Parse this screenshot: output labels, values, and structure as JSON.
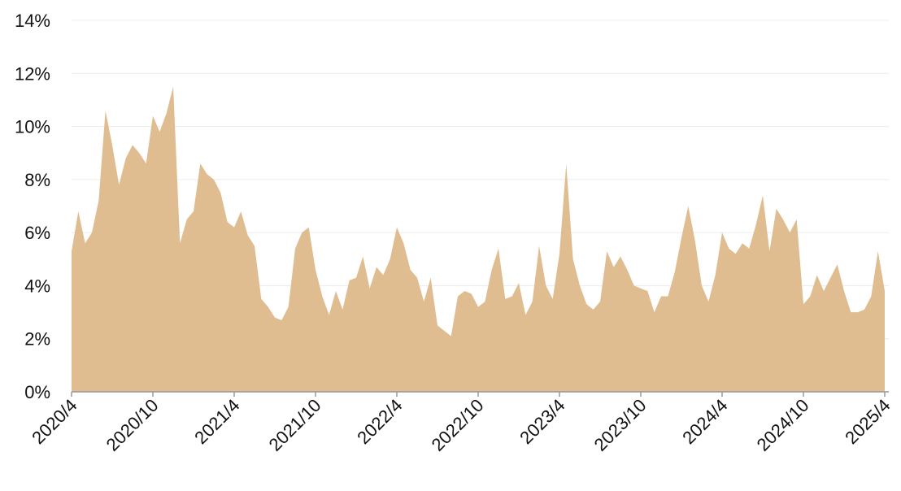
{
  "chart_data": {
    "type": "area",
    "categories": [
      "2020/4",
      null,
      null,
      null,
      null,
      null,
      null,
      null,
      null,
      null,
      null,
      null,
      "2020/10",
      null,
      null,
      null,
      null,
      null,
      null,
      null,
      null,
      null,
      null,
      null,
      "2021/4",
      null,
      null,
      null,
      null,
      null,
      null,
      null,
      null,
      null,
      null,
      null,
      "2021/10",
      null,
      null,
      null,
      null,
      null,
      null,
      null,
      null,
      null,
      null,
      null,
      "2022/4",
      null,
      null,
      null,
      null,
      null,
      null,
      null,
      null,
      null,
      null,
      null,
      "2022/10",
      null,
      null,
      null,
      null,
      null,
      null,
      null,
      null,
      null,
      null,
      null,
      "2023/4",
      null,
      null,
      null,
      null,
      null,
      null,
      null,
      null,
      null,
      null,
      null,
      "2023/10",
      null,
      null,
      null,
      null,
      null,
      null,
      null,
      null,
      null,
      null,
      null,
      "2024/4",
      null,
      null,
      null,
      null,
      null,
      null,
      null,
      null,
      null,
      null,
      null,
      "2024/10",
      null,
      null,
      null,
      null,
      null,
      null,
      null,
      null,
      null,
      null,
      null,
      "2025/4"
    ],
    "values": [
      5.3,
      6.8,
      5.6,
      6.0,
      7.2,
      10.6,
      9.3,
      7.8,
      8.8,
      9.3,
      9.0,
      8.6,
      10.4,
      9.8,
      10.5,
      11.5,
      5.6,
      6.5,
      6.8,
      8.6,
      8.2,
      8.0,
      7.5,
      6.4,
      6.2,
      6.8,
      5.9,
      5.5,
      3.5,
      3.2,
      2.8,
      2.7,
      3.2,
      5.4,
      6.0,
      6.2,
      4.6,
      3.6,
      2.9,
      3.8,
      3.1,
      4.2,
      4.3,
      5.1,
      3.9,
      4.7,
      4.4,
      5.0,
      6.2,
      5.6,
      4.6,
      4.3,
      3.4,
      4.3,
      2.5,
      2.3,
      2.1,
      3.6,
      3.8,
      3.7,
      3.2,
      3.4,
      4.6,
      5.4,
      3.5,
      3.6,
      4.1,
      2.9,
      3.4,
      5.5,
      4.0,
      3.5,
      5.2,
      8.6,
      5.0,
      4.0,
      3.3,
      3.1,
      3.4,
      5.3,
      4.7,
      5.1,
      4.6,
      4.0,
      3.9,
      3.8,
      3.0,
      3.6,
      3.6,
      4.5,
      5.8,
      7.0,
      5.7,
      4.0,
      3.4,
      4.4,
      6.0,
      5.4,
      5.2,
      5.6,
      5.4,
      6.3,
      7.4,
      5.3,
      6.9,
      6.5,
      6.0,
      6.5,
      3.3,
      3.6,
      4.4,
      3.8,
      4.3,
      4.8,
      3.8,
      3.0,
      3.0,
      3.1,
      3.6,
      5.3,
      3.8
    ],
    "color": "#dfbd91",
    "ylim": [
      0,
      14
    ],
    "yticks": [
      {
        "value": 0,
        "label": "0%"
      },
      {
        "value": 2,
        "label": "2%"
      },
      {
        "value": 4,
        "label": "4%"
      },
      {
        "value": 6,
        "label": "6%"
      },
      {
        "value": 8,
        "label": "8%"
      },
      {
        "value": 10,
        "label": "10%"
      },
      {
        "value": 12,
        "label": "12%"
      },
      {
        "value": 14,
        "label": "14%"
      }
    ],
    "grid": true
  }
}
